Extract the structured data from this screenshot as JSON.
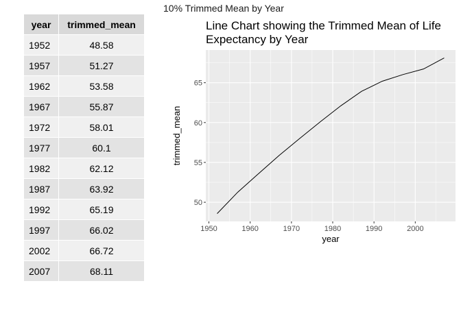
{
  "page_title": "10% Trimmed Mean by Year",
  "table": {
    "columns": [
      "year",
      "trimmed_mean"
    ],
    "rows": [
      {
        "year": "1952",
        "trimmed_mean": "48.58"
      },
      {
        "year": "1957",
        "trimmed_mean": "51.27"
      },
      {
        "year": "1962",
        "trimmed_mean": "53.58"
      },
      {
        "year": "1967",
        "trimmed_mean": "55.87"
      },
      {
        "year": "1972",
        "trimmed_mean": "58.01"
      },
      {
        "year": "1977",
        "trimmed_mean": "60.1"
      },
      {
        "year": "1982",
        "trimmed_mean": "62.12"
      },
      {
        "year": "1987",
        "trimmed_mean": "63.92"
      },
      {
        "year": "1992",
        "trimmed_mean": "65.19"
      },
      {
        "year": "1997",
        "trimmed_mean": "66.02"
      },
      {
        "year": "2002",
        "trimmed_mean": "66.72"
      },
      {
        "year": "2007",
        "trimmed_mean": "68.11"
      }
    ]
  },
  "chart_data": {
    "type": "line",
    "title_lines": [
      "Line Chart showing the Trimmed Mean of Life",
      "Expectancy by Year"
    ],
    "xlabel": "year",
    "ylabel": "trimmed_mean",
    "x": [
      1952,
      1957,
      1962,
      1967,
      1972,
      1977,
      1982,
      1987,
      1992,
      1997,
      2002,
      2007
    ],
    "y": [
      48.58,
      51.27,
      53.58,
      55.87,
      58.01,
      60.1,
      62.12,
      63.92,
      65.19,
      66.02,
      66.72,
      68.11
    ],
    "xlim": [
      1949.25,
      2009.75
    ],
    "ylim": [
      47.6,
      69.1
    ],
    "x_ticks": [
      1950,
      1960,
      1970,
      1980,
      1990,
      2000
    ],
    "x_tick_labels": [
      "1950",
      "1960",
      "1970",
      "1980",
      "1990",
      "2000"
    ],
    "y_ticks": [
      50,
      55,
      60,
      65
    ],
    "y_tick_labels": [
      "50",
      "55",
      "60",
      "65"
    ],
    "grid": true,
    "panel_color": "#ebebeb",
    "gridline_color": "#ffffff",
    "line_color": "#000000"
  }
}
